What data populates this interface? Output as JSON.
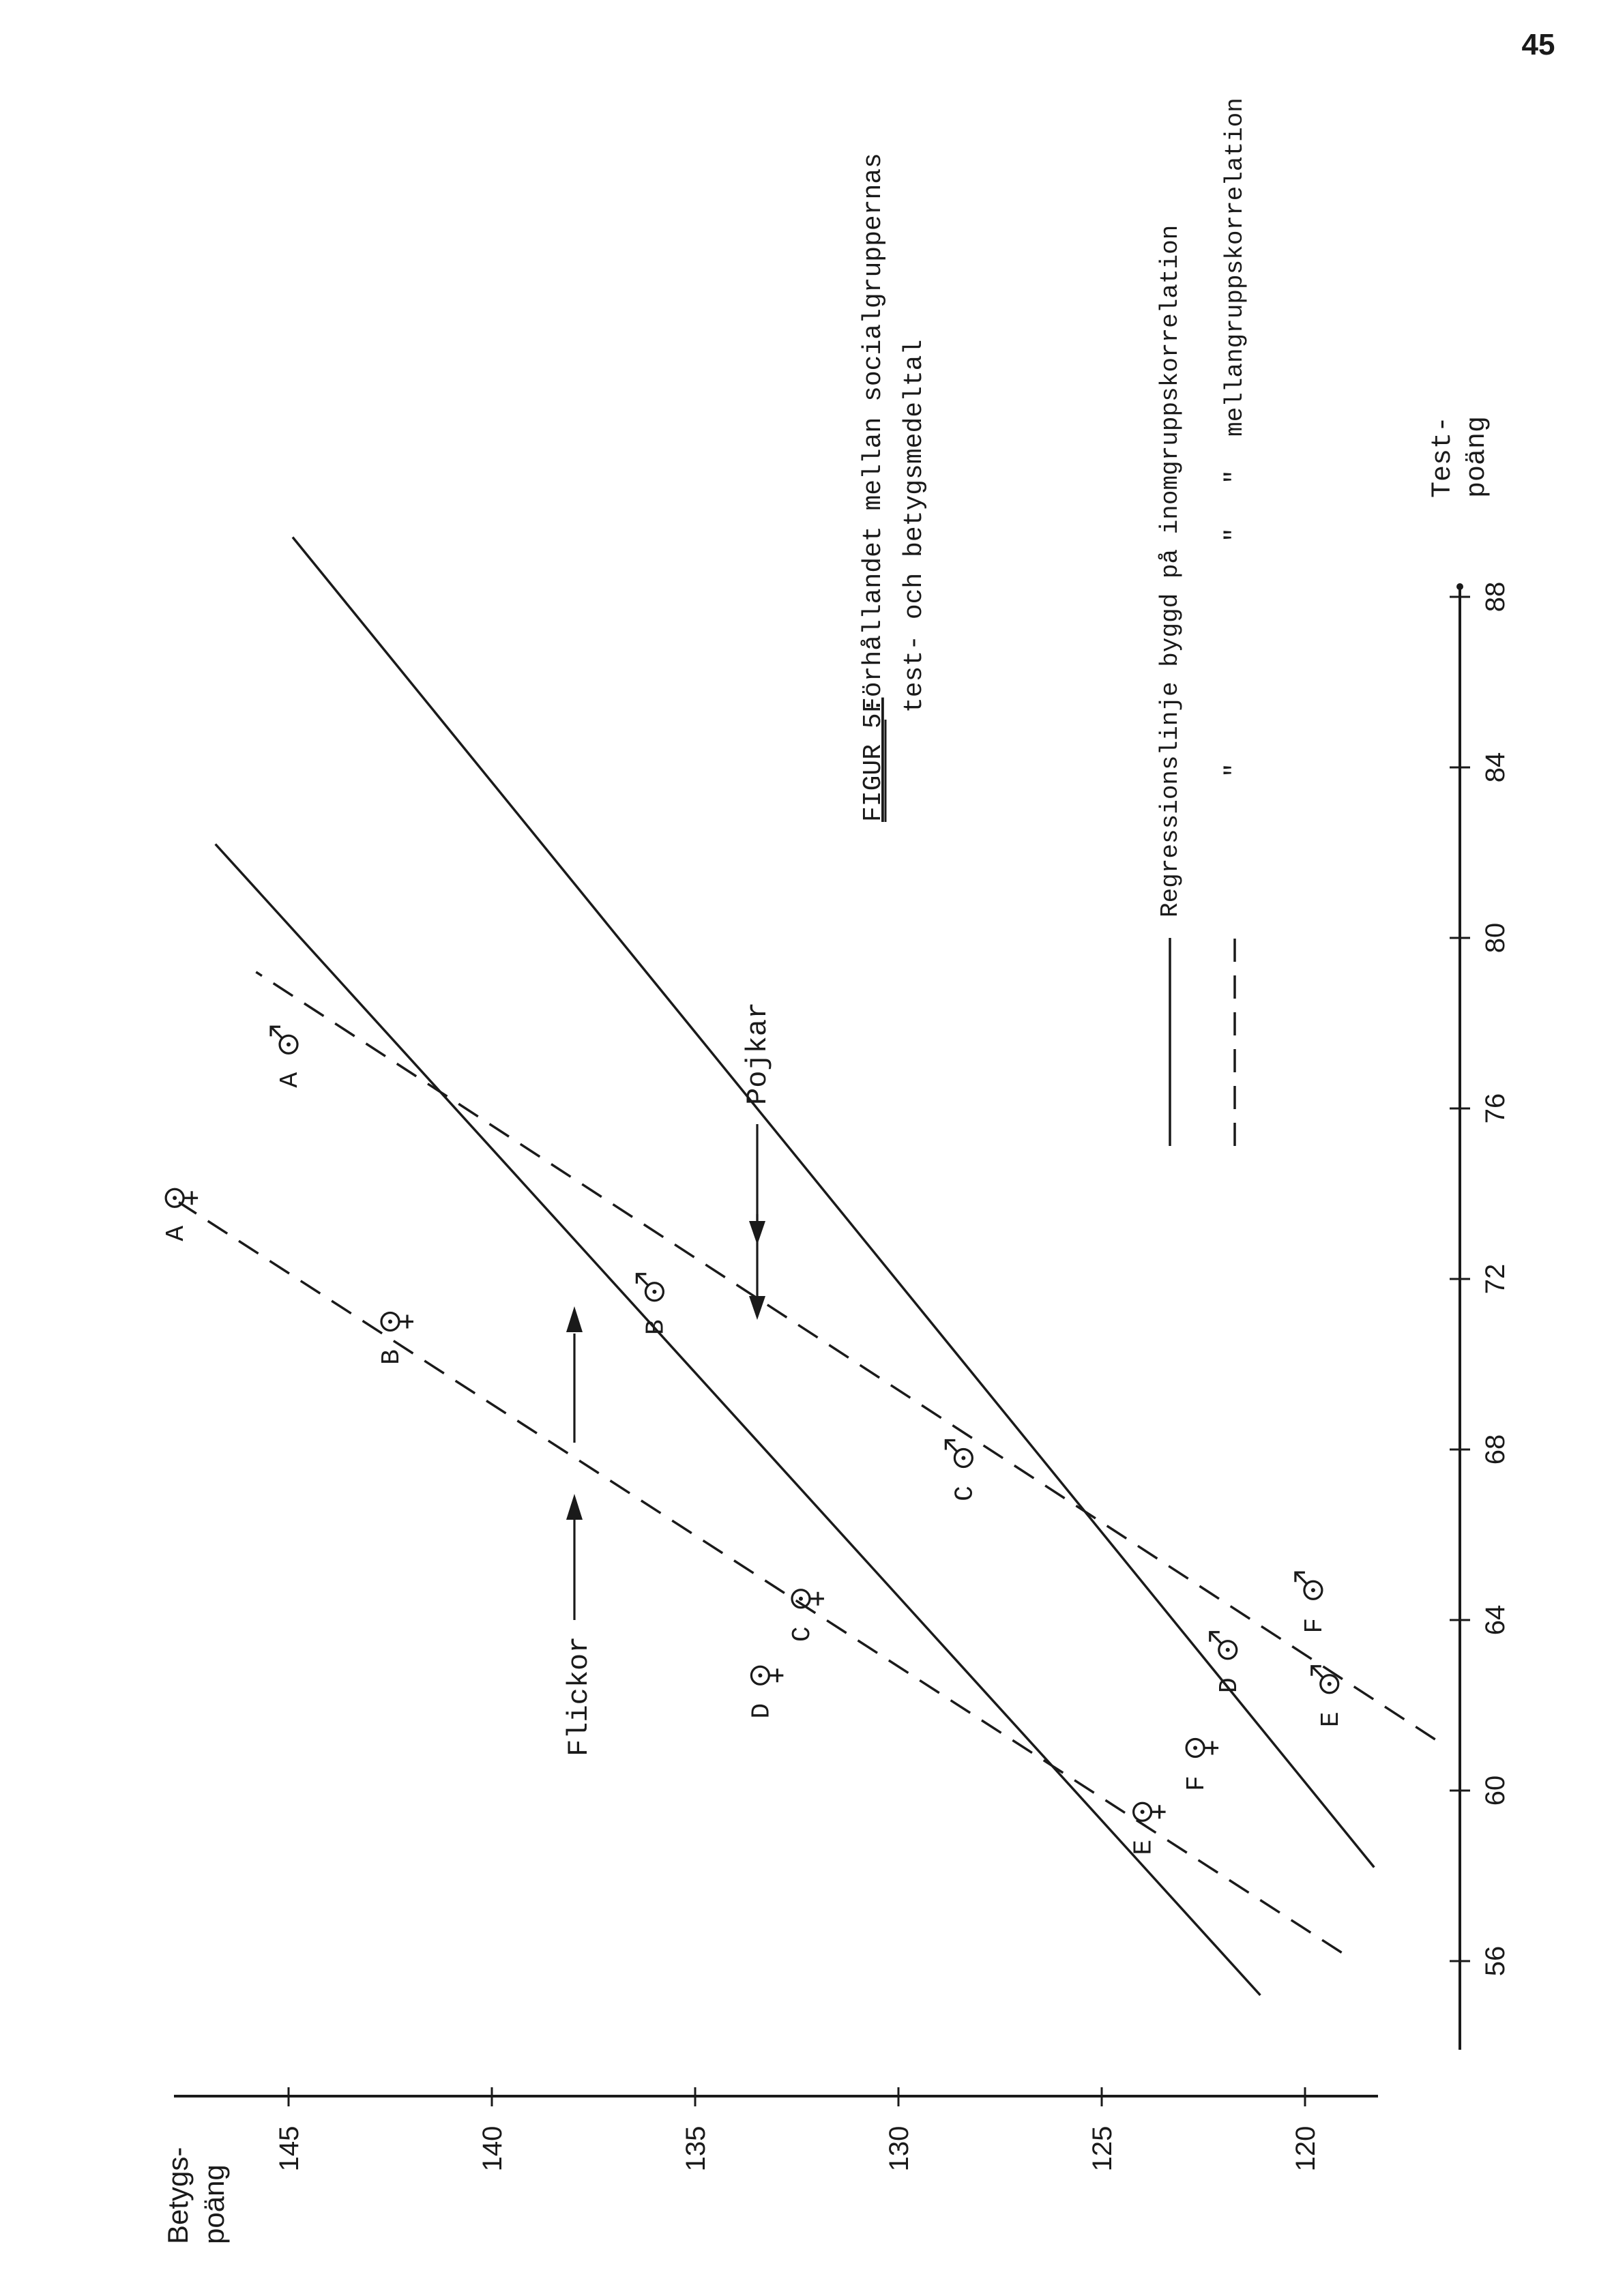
{
  "page_number": "45",
  "chart_data": {
    "type": "scatter",
    "title": "Förhållandet mellan socialgruppernas test- och betygsmedeltal",
    "figure_label": "FIGUR 5:",
    "title_line1": "Förhållandet mellan socialgruppernas",
    "title_line2": "test- och betygsmedeltal",
    "xlabel_line1": "Test-",
    "xlabel_line2": "poäng",
    "ylabel_line1": "Betygs-",
    "ylabel_line2": "poäng",
    "xlim": [
      54,
      90
    ],
    "ylim": [
      118,
      148
    ],
    "x_ticks": [
      "56",
      "60",
      "64",
      "68",
      "72",
      "76",
      "80",
      "84",
      "88"
    ],
    "y_ticks": [
      "120",
      "125",
      "130",
      "135",
      "140",
      "145"
    ],
    "x_tick_values": [
      56,
      60,
      64,
      68,
      72,
      76,
      80,
      84,
      88
    ],
    "y_tick_values": [
      120,
      125,
      130,
      135,
      140,
      145
    ],
    "legend": {
      "placement": "right",
      "solid_label": "Regressionslinje byggd på inomgruppskorrelation",
      "ditto_1": "\"",
      "ditto_2": "\"",
      "ditto_3": "\"",
      "between_label": "mellangruppskorrelation"
    },
    "annotations": {
      "pojkar": "Pojkar",
      "flickor": "Flickor"
    },
    "series": [
      {
        "name": "Flickor",
        "symbol": "female",
        "points": [
          {
            "label": "A",
            "x": 73.9,
            "y": 147.8
          },
          {
            "label": "B",
            "x": 71.0,
            "y": 142.5
          },
          {
            "label": "C",
            "x": 64.5,
            "y": 132.4
          },
          {
            "label": "D",
            "x": 62.7,
            "y": 133.4
          },
          {
            "label": "E",
            "x": 59.5,
            "y": 124.0
          },
          {
            "label": "F",
            "x": 61.0,
            "y": 122.7
          }
        ]
      },
      {
        "name": "Pojkar",
        "symbol": "male",
        "points": [
          {
            "label": "A",
            "x": 77.5,
            "y": 145.0
          },
          {
            "label": "B",
            "x": 71.7,
            "y": 136.0
          },
          {
            "label": "C",
            "x": 67.8,
            "y": 128.4
          },
          {
            "label": "D",
            "x": 63.3,
            "y": 121.9
          },
          {
            "label": "E",
            "x": 62.5,
            "y": 119.4
          },
          {
            "label": "F",
            "x": 64.7,
            "y": 119.8
          }
        ]
      }
    ],
    "lines": [
      {
        "style": "solid",
        "x": [
          55.2,
          82.2
        ],
        "y": [
          121.1,
          146.8
        ]
      },
      {
        "style": "solid",
        "x": [
          58.2,
          89.4
        ],
        "y": [
          118.3,
          144.9
        ]
      },
      {
        "style": "dashed",
        "x": [
          56.2,
          73.8
        ],
        "y": [
          119.1,
          147.7
        ]
      },
      {
        "style": "dashed",
        "x": [
          61.2,
          79.2
        ],
        "y": [
          116.8,
          145.8
        ]
      }
    ]
  }
}
